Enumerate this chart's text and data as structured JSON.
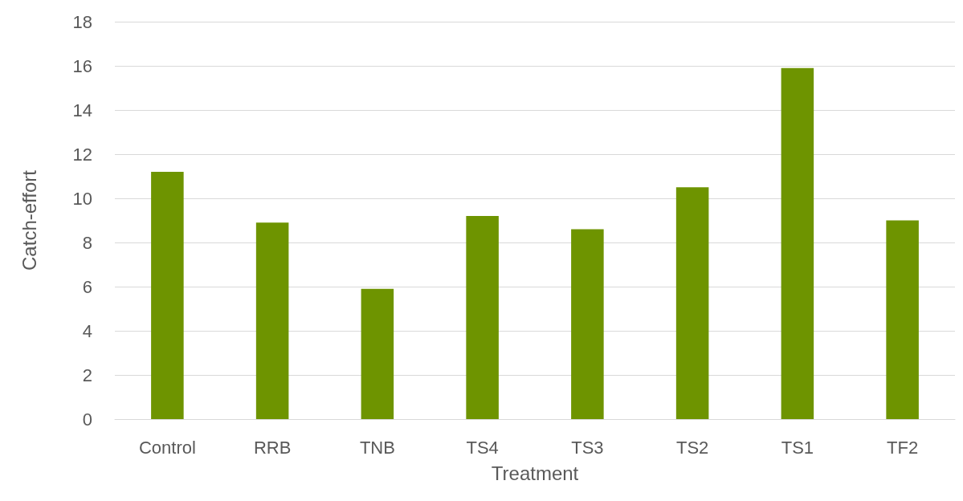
{
  "chart_data": {
    "type": "bar",
    "xlabel": "Treatment",
    "ylabel": "Catch-effort",
    "categories": [
      "Control",
      "RRB",
      "TNB",
      "TS4",
      "TS3",
      "TS2",
      "TS1",
      "TF2"
    ],
    "values": [
      11.2,
      8.9,
      5.9,
      9.2,
      8.6,
      10.5,
      15.9,
      9.0
    ],
    "color": "#6e9400",
    "ylim": [
      0,
      18
    ],
    "yticks": [
      0,
      2,
      4,
      6,
      8,
      10,
      12,
      14,
      16,
      18
    ],
    "grid": "y"
  }
}
